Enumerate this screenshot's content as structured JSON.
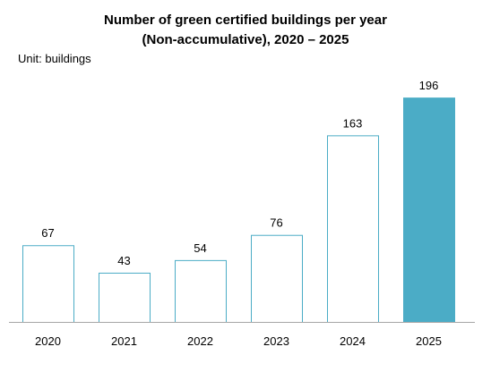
{
  "chart_data": {
    "type": "bar",
    "title_lines": [
      "Number of green certified buildings per year",
      "(Non-accumulative), 2020 – 2025"
    ],
    "unit_label": "Unit: buildings",
    "categories": [
      "2020",
      "2021",
      "2022",
      "2023",
      "2024",
      "2025"
    ],
    "values": [
      67,
      43,
      54,
      76,
      163,
      196
    ],
    "data_labels": [
      "67",
      "43",
      "54",
      "76",
      "163",
      "196"
    ],
    "highlight_category": "2025",
    "colors": {
      "bar_outline": "#4bacc6",
      "bar_fill": "#ffffff",
      "highlight_fill": "#4bacc6",
      "axis": "#a6a6a6"
    },
    "ylim": [
      0,
      200
    ],
    "grid": false,
    "legend": "none"
  }
}
